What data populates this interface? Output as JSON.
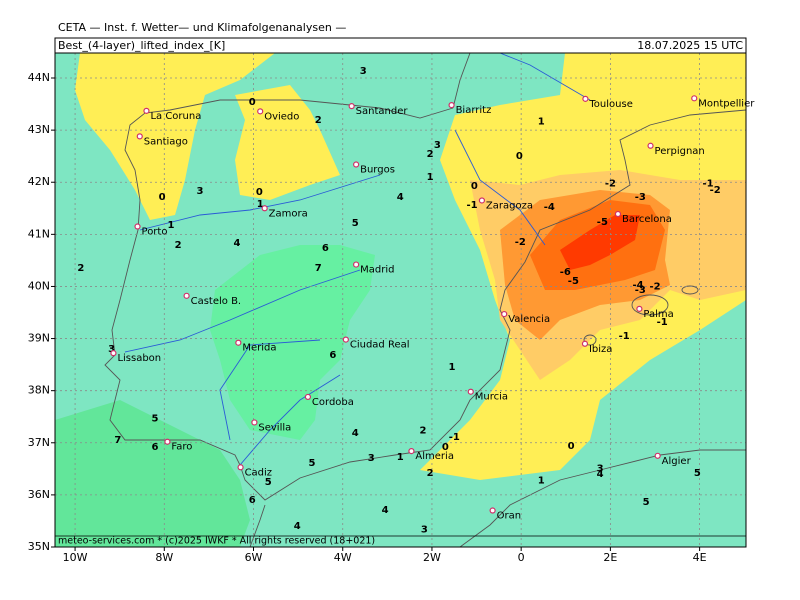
{
  "header": {
    "institute": "CETA — Inst. f. Wetter— und Klimafolgenanalysen —",
    "title": "Best_(4-layer)_lifted_index_[K]",
    "valid_time": "18.07.2025 15 UTC",
    "footer": "meteo-services.com * (c)2025 IWKF * All rights reserved (18+021)"
  },
  "map": {
    "lon_range": [
      -10.45,
      5.04
    ],
    "lat_range": [
      35,
      44.48
    ],
    "lon_ticks": [
      {
        "value": -10,
        "label": "10W"
      },
      {
        "value": -8,
        "label": "8W"
      },
      {
        "value": -6,
        "label": "6W"
      },
      {
        "value": -4,
        "label": "4W"
      },
      {
        "value": -2,
        "label": "2W"
      },
      0,
      {
        "value": 2,
        "label": "2E"
      },
      {
        "value": 4,
        "label": "4E"
      }
    ],
    "lat_ticks": [
      {
        "value": 35,
        "label": "35N"
      },
      {
        "value": 36,
        "label": "36N"
      },
      {
        "value": 37,
        "label": "37N"
      },
      {
        "value": 38,
        "label": "38N"
      },
      {
        "value": 39,
        "label": "39N"
      },
      {
        "value": 40,
        "label": "40N"
      },
      {
        "value": 41,
        "label": "41N"
      },
      {
        "value": 42,
        "label": "42N"
      },
      {
        "value": 43,
        "label": "43N"
      },
      {
        "value": 44,
        "label": "44N"
      }
    ],
    "cities": [
      {
        "name": "La Coruna",
        "lon": -8.4,
        "lat": 43.37
      },
      {
        "name": "Santiago",
        "lon": -8.55,
        "lat": 42.88
      },
      {
        "name": "Oviedo",
        "lon": -5.85,
        "lat": 43.36
      },
      {
        "name": "Santander",
        "lon": -3.8,
        "lat": 43.46
      },
      {
        "name": "Biarritz",
        "lon": -1.56,
        "lat": 43.48
      },
      {
        "name": "Toulouse",
        "lon": 1.44,
        "lat": 43.6
      },
      {
        "name": "Montpellier",
        "lon": 3.88,
        "lat": 43.61
      },
      {
        "name": "Perpignan",
        "lon": 2.9,
        "lat": 42.7
      },
      {
        "name": "Burgos",
        "lon": -3.7,
        "lat": 42.34
      },
      {
        "name": "Zaragoza",
        "lon": -0.88,
        "lat": 41.65
      },
      {
        "name": "Barcelona",
        "lon": 2.17,
        "lat": 41.39
      },
      {
        "name": "Zamora",
        "lon": -5.75,
        "lat": 41.5
      },
      {
        "name": "Porto",
        "lon": -8.6,
        "lat": 41.15
      },
      {
        "name": "Madrid",
        "lon": -3.7,
        "lat": 40.42
      },
      {
        "name": "Castelo B.",
        "lon": -7.5,
        "lat": 39.82
      },
      {
        "name": "Palma",
        "lon": 2.65,
        "lat": 39.57
      },
      {
        "name": "Valencia",
        "lon": -0.38,
        "lat": 39.47
      },
      {
        "name": "Ibiza",
        "lon": 1.43,
        "lat": 38.9
      },
      {
        "name": "Lissabon",
        "lon": -9.14,
        "lat": 38.72
      },
      {
        "name": "Merida",
        "lon": -6.34,
        "lat": 38.92
      },
      {
        "name": "Ciudad Real",
        "lon": -3.93,
        "lat": 38.98
      },
      {
        "name": "Cordoba",
        "lon": -4.78,
        "lat": 37.88
      },
      {
        "name": "Murcia",
        "lon": -1.13,
        "lat": 37.98
      },
      {
        "name": "Faro",
        "lon": -7.93,
        "lat": 37.02
      },
      {
        "name": "Sevilla",
        "lon": -5.98,
        "lat": 37.39
      },
      {
        "name": "Almeria",
        "lon": -2.46,
        "lat": 36.84
      },
      {
        "name": "Cadiz",
        "lon": -6.29,
        "lat": 36.53
      },
      {
        "name": "Algier",
        "lon": 3.06,
        "lat": 36.75
      },
      {
        "name": "Oran",
        "lon": -0.64,
        "lat": 35.7
      }
    ],
    "contour_labels": [
      {
        "value": 3,
        "lon": -3.54,
        "lat": 44.13
      },
      {
        "value": 0,
        "lon": -6.03,
        "lat": 43.54
      },
      {
        "value": 2,
        "lon": -4.55,
        "lat": 43.19
      },
      {
        "value": 3,
        "lon": -1.88,
        "lat": 42.71
      },
      {
        "value": 2,
        "lon": -2.04,
        "lat": 42.54
      },
      {
        "value": 1,
        "lon": 0.45,
        "lat": 43.17
      },
      {
        "value": 0,
        "lon": -0.04,
        "lat": 42.5
      },
      {
        "value": 1,
        "lon": -2.04,
        "lat": 42.1
      },
      {
        "value": 0,
        "lon": -1.05,
        "lat": 41.93
      },
      {
        "value": -1,
        "lon": -1.1,
        "lat": 41.56
      },
      {
        "value": -4,
        "lon": 0.63,
        "lat": 41.52
      },
      {
        "value": -2,
        "lon": 2.0,
        "lat": 41.98
      },
      {
        "value": -3,
        "lon": 2.67,
        "lat": 41.72
      },
      {
        "value": -1,
        "lon": 4.19,
        "lat": 41.98
      },
      {
        "value": -2,
        "lon": 4.35,
        "lat": 41.85
      },
      {
        "value": -5,
        "lon": 1.82,
        "lat": 41.24
      },
      {
        "value": -2,
        "lon": -0.02,
        "lat": 40.85
      },
      {
        "value": -6,
        "lon": 0.99,
        "lat": 40.28
      },
      {
        "value": -5,
        "lon": 1.17,
        "lat": 40.1
      },
      {
        "value": -4,
        "lon": 2.62,
        "lat": 40.03
      },
      {
        "value": -3,
        "lon": 2.67,
        "lat": 39.93
      },
      {
        "value": -2,
        "lon": 3.0,
        "lat": 40.0
      },
      {
        "value": -1,
        "lon": 3.16,
        "lat": 39.32
      },
      {
        "value": -1,
        "lon": 2.31,
        "lat": 39.05
      },
      {
        "value": 0,
        "lon": -8.05,
        "lat": 41.72
      },
      {
        "value": 3,
        "lon": -7.2,
        "lat": 41.83
      },
      {
        "value": 1,
        "lon": -7.85,
        "lat": 41.18
      },
      {
        "value": 2,
        "lon": -7.69,
        "lat": 40.8
      },
      {
        "value": 4,
        "lon": -6.37,
        "lat": 40.83
      },
      {
        "value": 5,
        "lon": -3.72,
        "lat": 41.22
      },
      {
        "value": 6,
        "lon": -4.39,
        "lat": 40.74
      },
      {
        "value": 7,
        "lon": -4.55,
        "lat": 40.35
      },
      {
        "value": 4,
        "lon": -2.71,
        "lat": 41.72
      },
      {
        "value": 0,
        "lon": -5.87,
        "lat": 41.81
      },
      {
        "value": 1,
        "lon": -5.85,
        "lat": 41.58
      },
      {
        "value": 2,
        "lon": -9.87,
        "lat": 40.35
      },
      {
        "value": 3,
        "lon": -9.18,
        "lat": 38.8
      },
      {
        "value": 6,
        "lon": -4.22,
        "lat": 38.68
      },
      {
        "value": 1,
        "lon": -1.55,
        "lat": 38.45
      },
      {
        "value": 5,
        "lon": -8.21,
        "lat": 37.47
      },
      {
        "value": 7,
        "lon": -9.04,
        "lat": 37.05
      },
      {
        "value": 6,
        "lon": -8.21,
        "lat": 36.92
      },
      {
        "value": 4,
        "lon": -3.72,
        "lat": 37.19
      },
      {
        "value": 2,
        "lon": -2.2,
        "lat": 37.24
      },
      {
        "value": -1,
        "lon": -1.5,
        "lat": 37.11
      },
      {
        "value": 0,
        "lon": -1.7,
        "lat": 36.92
      },
      {
        "value": 0,
        "lon": 1.12,
        "lat": 36.94
      },
      {
        "value": 3,
        "lon": -3.36,
        "lat": 36.71
      },
      {
        "value": 1,
        "lon": -2.71,
        "lat": 36.73
      },
      {
        "value": 5,
        "lon": -4.69,
        "lat": 36.61
      },
      {
        "value": 2,
        "lon": -2.04,
        "lat": 36.42
      },
      {
        "value": 1,
        "lon": 0.45,
        "lat": 36.28
      },
      {
        "value": 5,
        "lon": -5.67,
        "lat": 36.25
      },
      {
        "value": 6,
        "lon": -6.03,
        "lat": 35.9
      },
      {
        "value": 4,
        "lon": -3.05,
        "lat": 35.71
      },
      {
        "value": 5,
        "lon": 2.8,
        "lat": 35.86
      },
      {
        "value": 5,
        "lon": 3.95,
        "lat": 36.42
      },
      {
        "value": 3,
        "lon": 1.77,
        "lat": 36.51
      },
      {
        "value": 4,
        "lon": 1.77,
        "lat": 36.4
      },
      {
        "value": 4,
        "lon": -5.02,
        "lat": 35.4
      },
      {
        "value": 3,
        "lon": -2.17,
        "lat": 35.34
      }
    ]
  }
}
